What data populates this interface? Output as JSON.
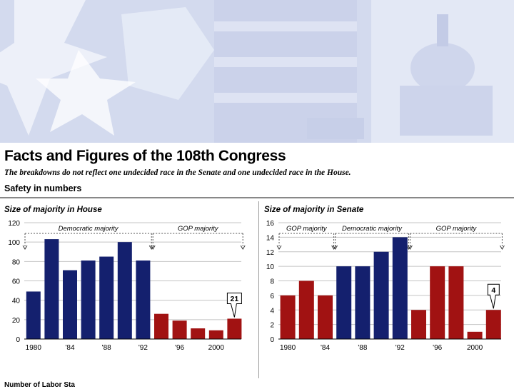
{
  "header": {
    "title": "Facts and Figures of the 108th Congress",
    "subtitle": "The breakdowns do not reflect one undecided race in the Senate and one undecided race in the House.",
    "section": "Safety in numbers",
    "footer_fragment": "Number of Labor Sta"
  },
  "colors": {
    "dem": "#14206e",
    "gop": "#a11212"
  },
  "chart_data": [
    {
      "type": "bar",
      "title": "Size of majority in House",
      "ylim": [
        0,
        120
      ],
      "yticks": [
        0,
        20,
        40,
        60,
        80,
        100,
        120
      ],
      "x_ticks": [
        "1980",
        "'84",
        "'88",
        "'92",
        "'96",
        "2000"
      ],
      "categories": [
        "1980",
        "1982",
        "1984",
        "1986",
        "1988",
        "1990",
        "1992",
        "1994",
        "1996",
        "1998",
        "2000",
        "2002"
      ],
      "values": [
        49,
        103,
        71,
        81,
        85,
        100,
        81,
        26,
        19,
        11,
        9,
        21
      ],
      "party": [
        "dem",
        "dem",
        "dem",
        "dem",
        "dem",
        "dem",
        "dem",
        "gop",
        "gop",
        "gop",
        "gop",
        "gop"
      ],
      "spans": [
        {
          "label": "Democratic majority",
          "from": 0,
          "to": 6
        },
        {
          "label": "GOP majority",
          "from": 7,
          "to": 11
        }
      ],
      "callout": {
        "index": 11,
        "text": "21"
      }
    },
    {
      "type": "bar",
      "title": "Size of majority in Senate",
      "ylim": [
        0,
        16
      ],
      "yticks": [
        0,
        2,
        4,
        6,
        8,
        10,
        12,
        14,
        16
      ],
      "x_ticks": [
        "1980",
        "'84",
        "'88",
        "'92",
        "'96",
        "2000"
      ],
      "categories": [
        "1980",
        "1982",
        "1984",
        "1986",
        "1988",
        "1990",
        "1992",
        "1994",
        "1996",
        "1998",
        "2000",
        "2002"
      ],
      "values": [
        6,
        8,
        6,
        10,
        10,
        12,
        14,
        4,
        10,
        10,
        1,
        4
      ],
      "party": [
        "gop",
        "gop",
        "gop",
        "dem",
        "dem",
        "dem",
        "dem",
        "gop",
        "gop",
        "gop",
        "gop",
        "gop"
      ],
      "spans": [
        {
          "label": "GOP majority",
          "from": 0,
          "to": 2
        },
        {
          "label": "Democratic majority",
          "from": 3,
          "to": 6
        },
        {
          "label": "GOP majority",
          "from": 7,
          "to": 11
        }
      ],
      "callout": {
        "index": 11,
        "text": "4"
      }
    }
  ]
}
